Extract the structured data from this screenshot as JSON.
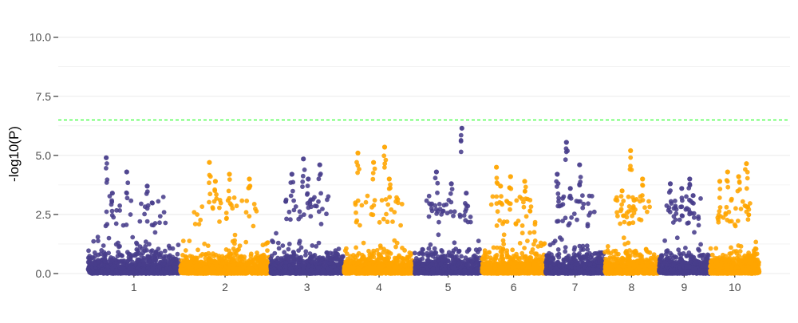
{
  "chart_data": {
    "type": "scatter",
    "title": "",
    "xlabel": "",
    "ylabel": "-log10(P)",
    "ylim": [
      0,
      10.9
    ],
    "yticks": [
      {
        "value": 0,
        "label": "0.0"
      },
      {
        "value": 2.5,
        "label": "2.5"
      },
      {
        "value": 5,
        "label": "5.0"
      },
      {
        "value": 7.5,
        "label": "7.5"
      },
      {
        "value": 10,
        "label": "10.0"
      }
    ],
    "threshold": 6.5,
    "grid": true,
    "legend": "none",
    "colors": {
      "odd": "#483D8B",
      "even": "#FFA500",
      "threshold": "#00FF00",
      "grid": "#EBEBEB"
    },
    "chromosomes": [
      {
        "label": "1",
        "start": 0,
        "end": 248,
        "top_hits": [
          4.9,
          4.3,
          3.7,
          3.4
        ]
      },
      {
        "label": "2",
        "start": 248,
        "end": 490,
        "top_hits": [
          4.7,
          4.2,
          4.0,
          3.9
        ]
      },
      {
        "label": "3",
        "start": 490,
        "end": 688,
        "top_hits": [
          4.85,
          4.6,
          4.2,
          4.0
        ]
      },
      {
        "label": "4",
        "start": 688,
        "end": 878,
        "top_hits": [
          5.35,
          5.1,
          4.7,
          4.0
        ]
      },
      {
        "label": "5",
        "start": 878,
        "end": 1059,
        "top_hits": [
          6.15,
          4.3,
          3.8,
          3.4
        ]
      },
      {
        "label": "6",
        "start": 1059,
        "end": 1230,
        "top_hits": [
          4.5,
          4.1,
          3.9,
          3.7
        ]
      },
      {
        "label": "7",
        "start": 1230,
        "end": 1389,
        "top_hits": [
          5.55,
          4.6,
          4.2,
          3.6
        ]
      },
      {
        "label": "8",
        "start": 1389,
        "end": 1534,
        "top_hits": [
          5.2,
          4.0,
          3.5,
          3.1
        ]
      },
      {
        "label": "9",
        "start": 1534,
        "end": 1672,
        "top_hits": [
          4.0,
          3.8,
          3.6,
          3.3
        ]
      },
      {
        "label": "10",
        "start": 1672,
        "end": 1806,
        "top_hits": [
          4.65,
          4.3,
          4.1,
          3.9
        ]
      }
    ]
  }
}
